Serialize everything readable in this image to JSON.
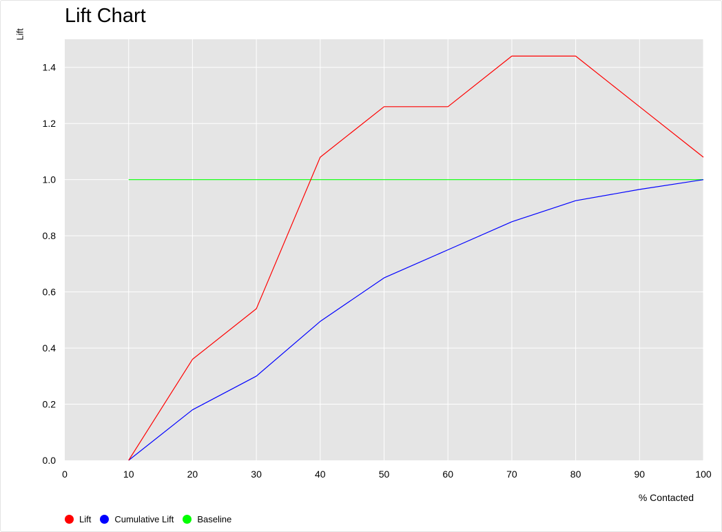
{
  "chart_data": {
    "type": "line",
    "title": "Lift Chart",
    "xlabel": "% Contacted",
    "ylabel": "Lift",
    "xlim": [
      0,
      100
    ],
    "ylim": [
      0,
      1.5
    ],
    "xticks": [
      0,
      10,
      20,
      30,
      40,
      50,
      60,
      70,
      80,
      90,
      100
    ],
    "yticks": [
      0.0,
      0.2,
      0.4,
      0.6,
      0.8,
      1.0,
      1.2,
      1.4
    ],
    "ytick_labels": [
      "0.0",
      "0.2",
      "0.4",
      "0.6",
      "0.8",
      "1.0",
      "1.2",
      "1.4"
    ],
    "grid": true,
    "legend_position": "bottom-left",
    "x": [
      10,
      20,
      30,
      40,
      50,
      60,
      70,
      80,
      90,
      100
    ],
    "series": [
      {
        "name": "Lift",
        "color": "#ff0000",
        "values": [
          0.0,
          0.36,
          0.54,
          1.08,
          1.26,
          1.26,
          1.44,
          1.44,
          1.26,
          1.08
        ]
      },
      {
        "name": "Cumulative Lift",
        "color": "#0000ff",
        "values": [
          0.0,
          0.18,
          0.3,
          0.495,
          0.65,
          0.75,
          0.85,
          0.925,
          0.965,
          1.0
        ]
      },
      {
        "name": "Baseline",
        "color": "#00ff00",
        "values": [
          1.0,
          1.0,
          1.0,
          1.0,
          1.0,
          1.0,
          1.0,
          1.0,
          1.0,
          1.0
        ]
      }
    ]
  }
}
